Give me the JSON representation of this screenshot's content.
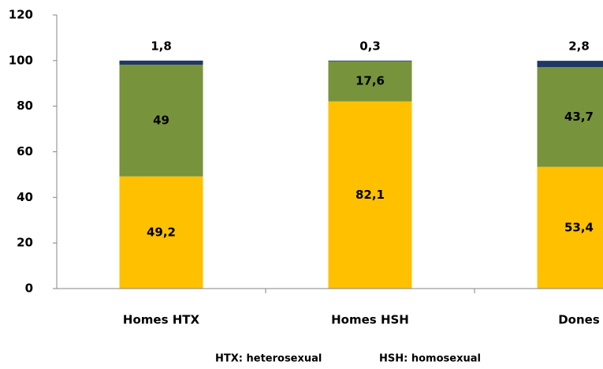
{
  "chart_data": {
    "type": "stacked_bar",
    "categories": [
      "Homes HTX",
      "Homes HSH",
      "Dones"
    ],
    "series": [
      {
        "color": "#ffc000",
        "values": [
          49.2,
          82.1,
          53.4
        ],
        "value_labels": [
          "49,2",
          "82,1",
          "53,4"
        ]
      },
      {
        "color": "#77933c",
        "values": [
          49,
          17.6,
          43.7
        ],
        "value_labels": [
          "49",
          "17,6",
          "43,7"
        ]
      },
      {
        "color": "#1f3864",
        "values": [
          1.8,
          0.3,
          2.8
        ],
        "value_labels": [
          "1,8",
          "0,3",
          "2,8"
        ]
      }
    ],
    "ylim": [
      0,
      120
    ],
    "yticks": [
      0,
      20,
      40,
      60,
      80,
      100,
      120
    ],
    "grid": false,
    "annotations": [
      "HTX: heterosexual",
      "HSH: homosexual"
    ]
  }
}
